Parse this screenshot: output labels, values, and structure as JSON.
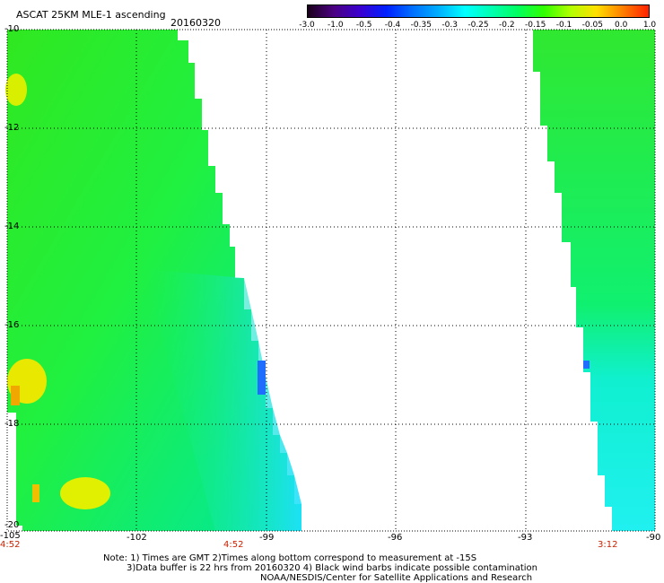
{
  "header": {
    "title": "ASCAT 25KM MLE-1 ascending",
    "date": "20160320"
  },
  "colorbar": {
    "labels": [
      "-3.0",
      "-1.0",
      "-0.5",
      "-0.4",
      "-0.35",
      "-0.3",
      "-0.25",
      "-0.2",
      "-0.15",
      "-0.1",
      "-0.05",
      "0.0",
      "1.0"
    ],
    "colors": [
      "#1a001a",
      "#4b0082",
      "#3a00d0",
      "#0020ff",
      "#0070ff",
      "#00b0ff",
      "#00ffff",
      "#00ffb0",
      "#00ff60",
      "#30ff00",
      "#b0ff00",
      "#ffe000",
      "#ff8000",
      "#ff2000"
    ]
  },
  "axes": {
    "y_labels": [
      "-10",
      "-12",
      "-14",
      "-16",
      "-18",
      "-20"
    ],
    "x_labels": [
      "-105",
      "-102",
      "-99",
      "-96",
      "-93",
      "-90"
    ]
  },
  "times": {
    "left_start": "4:52",
    "middle": "4:52",
    "right": "3:12"
  },
  "notes": {
    "line1": "Note: 1) Times are GMT 2)Times along bottom correspond to measurement at -15S",
    "line2": "3)Data buffer is 22 hrs from 20160320 4) Black wind barbs indicate possible contamination",
    "line3": "NOAA/NESDIS/Center for Satellite Applications and Research"
  }
}
